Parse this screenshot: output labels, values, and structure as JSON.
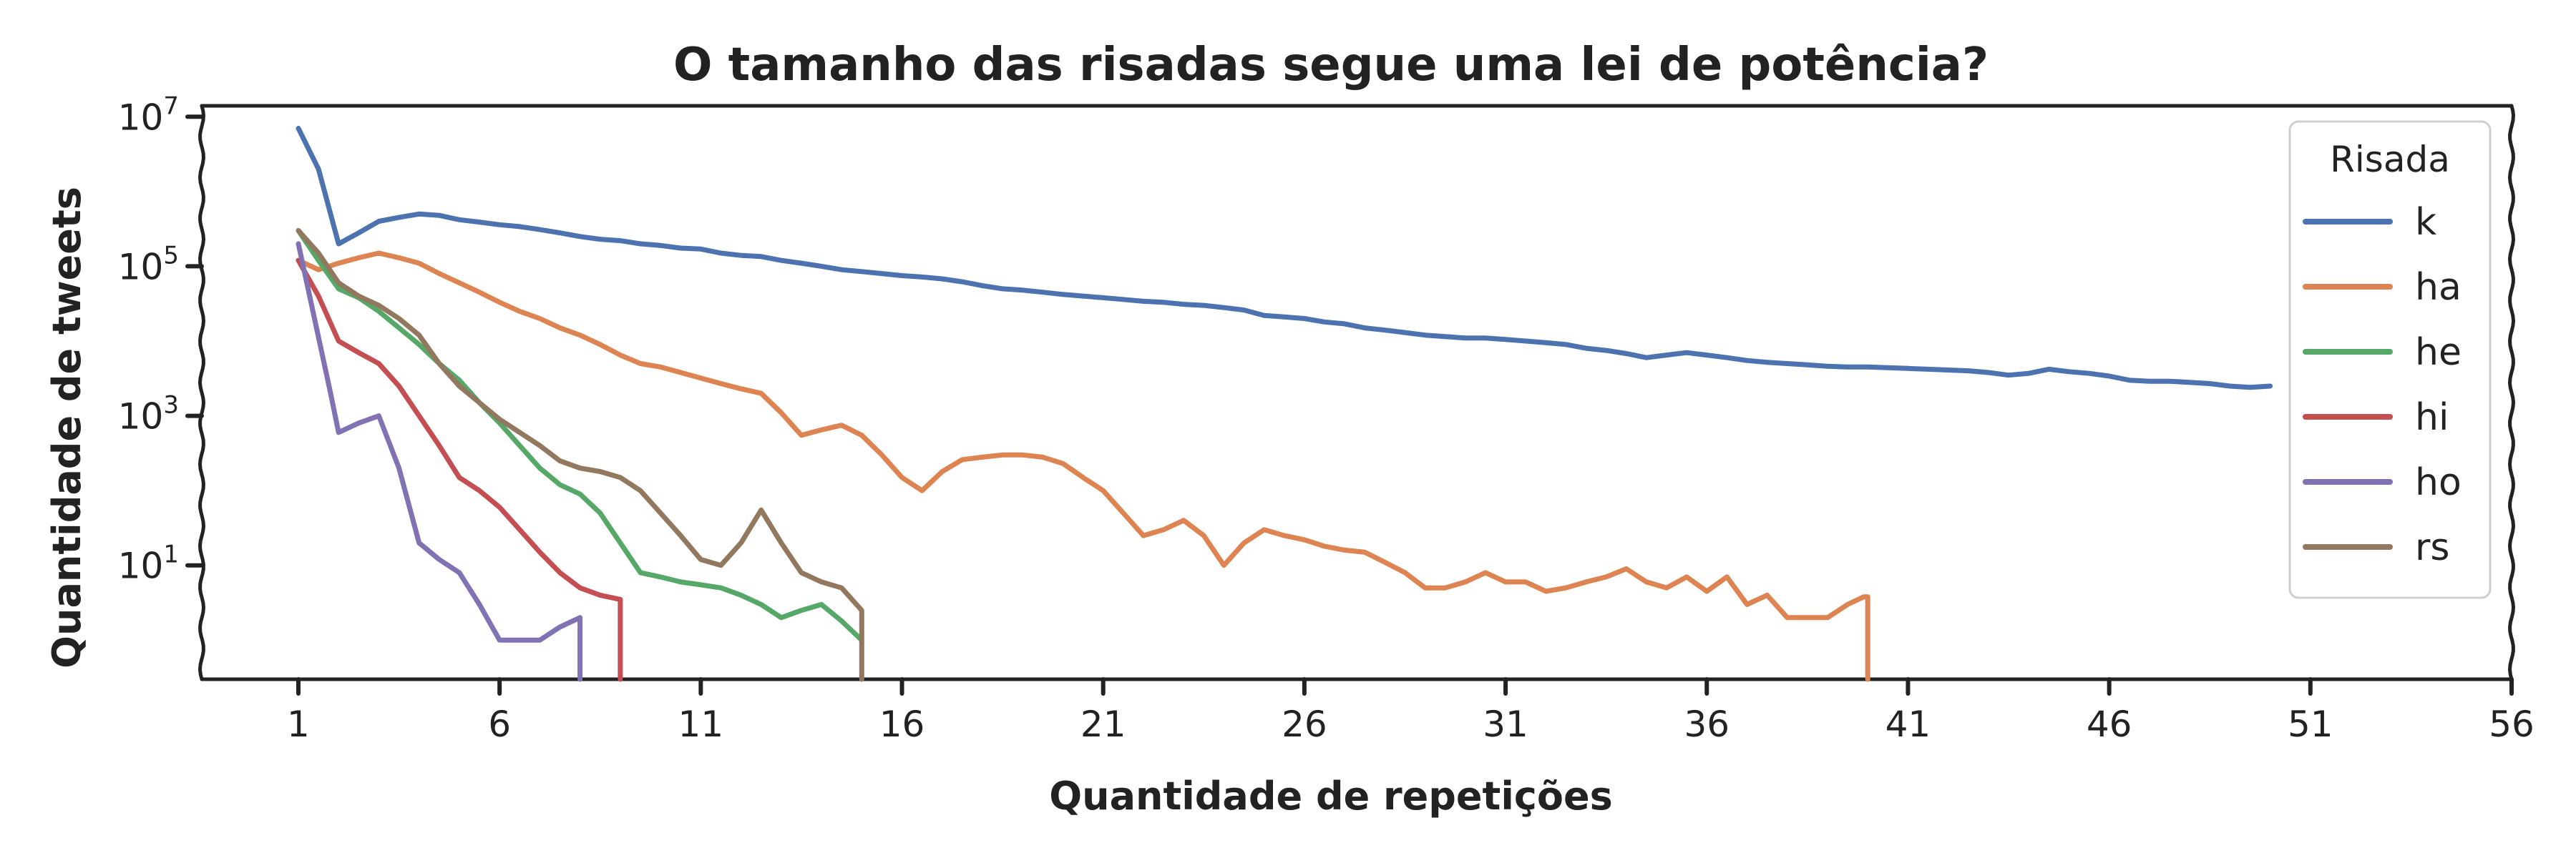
{
  "chart_data": {
    "type": "line",
    "title": "O tamanho das risadas segue uma lei de potência?",
    "xlabel": "Quantidade de repetições",
    "ylabel": "Quantidade de tweets",
    "xlim": [
      -1.4,
      56
    ],
    "ylim": [
      0.3,
      14000000
    ],
    "yscale": "log",
    "x_ticks": [
      1,
      6,
      11,
      16,
      21,
      26,
      31,
      36,
      41,
      46,
      51,
      56
    ],
    "y_ticks": [
      {
        "value": 10,
        "base": "10",
        "exp": "1"
      },
      {
        "value": 1000,
        "base": "10",
        "exp": "3"
      },
      {
        "value": 100000,
        "base": "10",
        "exp": "5"
      },
      {
        "value": 10000000,
        "base": "10",
        "exp": "7"
      }
    ],
    "grid": false,
    "legend": {
      "title": "Risada",
      "position": "top-right"
    },
    "series": [
      {
        "name": "k",
        "color": "#4c72b0",
        "x": [
          1,
          1.5,
          2,
          2.5,
          3,
          3.5,
          4,
          4.5,
          5,
          5.5,
          6,
          6.5,
          7,
          7.5,
          8,
          8.5,
          9,
          9.5,
          10,
          10.5,
          11,
          11.5,
          12,
          12.5,
          13,
          13.5,
          14,
          14.5,
          15,
          15.5,
          16,
          16.5,
          17,
          17.5,
          18,
          18.5,
          19,
          19.5,
          20,
          20.5,
          21,
          21.5,
          22,
          22.5,
          23,
          23.5,
          24,
          24.5,
          25,
          25.5,
          26,
          26.5,
          27,
          27.5,
          28,
          28.5,
          29,
          29.5,
          30,
          30.5,
          31,
          31.5,
          32,
          32.5,
          33,
          33.5,
          34,
          34.5,
          35,
          35.5,
          36,
          36.5,
          37,
          37.5,
          38,
          38.5,
          39,
          39.5,
          40,
          40.5,
          41,
          41.5,
          42,
          42.5,
          43,
          43.5,
          44,
          44.5,
          45,
          45.5,
          46,
          46.5,
          47,
          47.5,
          48,
          48.5,
          49,
          49.5,
          50
        ],
        "y": [
          7000000,
          2000000,
          200000,
          280000,
          400000,
          450000,
          500000,
          480000,
          420000,
          390000,
          360000,
          340000,
          310000,
          280000,
          250000,
          230000,
          220000,
          200000,
          190000,
          175000,
          170000,
          150000,
          140000,
          135000,
          120000,
          110000,
          100000,
          90000,
          85000,
          80000,
          75000,
          72000,
          68000,
          62000,
          55000,
          50000,
          48000,
          45000,
          42000,
          40000,
          38000,
          36000,
          34000,
          33000,
          31000,
          30000,
          28000,
          26000,
          22000,
          21000,
          20000,
          18000,
          17000,
          15000,
          14000,
          13000,
          12000,
          11500,
          11000,
          11000,
          10500,
          10000,
          9500,
          9000,
          8000,
          7500,
          6800,
          6000,
          6500,
          7000,
          6500,
          6000,
          5500,
          5200,
          5000,
          4800,
          4600,
          4500,
          4500,
          4400,
          4300,
          4200,
          4100,
          4000,
          3800,
          3500,
          3700,
          4200,
          3900,
          3700,
          3400,
          3000,
          2900,
          2900,
          2800,
          2700,
          2500,
          2400,
          2500
        ]
      },
      {
        "name": "ha",
        "color": "#dd8452",
        "x": [
          1,
          1.5,
          2,
          2.5,
          3,
          3.5,
          4,
          4.5,
          5,
          5.5,
          6,
          6.5,
          7,
          7.5,
          8,
          8.5,
          9,
          9.5,
          10,
          10.5,
          11,
          11.5,
          12,
          12.5,
          13,
          13.5,
          14,
          14.5,
          15,
          15.5,
          16,
          16.5,
          17,
          17.5,
          18,
          18.5,
          19,
          19.5,
          20,
          20.5,
          21,
          21.5,
          22,
          22.5,
          23,
          23.5,
          24,
          24.5,
          25,
          25.5,
          26,
          26.5,
          27,
          27.5,
          28,
          28.5,
          29,
          29.5,
          30,
          30.5,
          31,
          31.5,
          32,
          32.5,
          33,
          33.5,
          34,
          34.5,
          35,
          35.5,
          36,
          36.5,
          37,
          37.5,
          38,
          38.5,
          39,
          39.5,
          39.9,
          40,
          40
        ],
        "y": [
          120000,
          90000,
          110000,
          130000,
          150000,
          130000,
          110000,
          80000,
          60000,
          45000,
          33000,
          25000,
          20000,
          15000,
          12000,
          9000,
          6500,
          5000,
          4500,
          3800,
          3200,
          2700,
          2300,
          2000,
          1100,
          550,
          650,
          750,
          550,
          300,
          150,
          100,
          180,
          260,
          280,
          300,
          300,
          280,
          230,
          150,
          100,
          50,
          25,
          30,
          40,
          25,
          10,
          20,
          30,
          25,
          22,
          18,
          16,
          15,
          11,
          8,
          5,
          5,
          6,
          8,
          6,
          6,
          4.5,
          5,
          6,
          7,
          9,
          6,
          5,
          7,
          4.5,
          7,
          3,
          4,
          2,
          2,
          2,
          3,
          3.8,
          3.8,
          0.3
        ]
      },
      {
        "name": "he",
        "color": "#55a868",
        "x": [
          1,
          1.5,
          2,
          2.5,
          3,
          3.5,
          4,
          4.5,
          5,
          5.5,
          6,
          6.5,
          7,
          7.5,
          8,
          8.5,
          9,
          9.5,
          10,
          10.5,
          11,
          11.5,
          12,
          12.5,
          13,
          13.5,
          14,
          14.5,
          15
        ],
        "y": [
          300000,
          120000,
          50000,
          38000,
          25000,
          15000,
          9000,
          5000,
          3000,
          1500,
          800,
          400,
          200,
          120,
          90,
          50,
          20,
          8,
          7,
          6,
          5.5,
          5,
          4,
          3,
          2,
          2.5,
          3,
          1.8,
          1
        ]
      },
      {
        "name": "hi",
        "color": "#c44e52",
        "x": [
          1,
          1.5,
          2,
          2.5,
          3,
          3.5,
          4,
          4.5,
          5,
          5.5,
          6,
          6.5,
          7,
          7.5,
          8,
          8.5,
          9,
          9,
          9
        ],
        "y": [
          120000,
          40000,
          10000,
          7000,
          5000,
          2500,
          1000,
          400,
          150,
          100,
          60,
          30,
          15,
          8,
          5,
          4,
          3.5,
          3.5,
          0.3
        ]
      },
      {
        "name": "ho",
        "color": "#8172b3",
        "x": [
          1,
          1.4,
          1.8,
          2,
          2.5,
          3,
          3.5,
          4,
          4.5,
          5,
          5.5,
          6,
          6.5,
          7,
          7.5,
          8,
          8,
          8
        ],
        "y": [
          200000,
          20000,
          2000,
          600,
          800,
          1000,
          200,
          20,
          12,
          8,
          3,
          1,
          1,
          1,
          1.5,
          2,
          2,
          0.3
        ]
      },
      {
        "name": "rs",
        "color": "#937860",
        "x": [
          1,
          1.5,
          2,
          2.5,
          3,
          3.5,
          4,
          4.5,
          5,
          5.5,
          6,
          6.5,
          7,
          7.5,
          8,
          8.5,
          9,
          9.5,
          10,
          10.5,
          11,
          11.5,
          12,
          12.5,
          13,
          13.5,
          14,
          14.5,
          15,
          15,
          15
        ],
        "y": [
          300000,
          150000,
          60000,
          40000,
          30000,
          20000,
          12000,
          5000,
          2500,
          1500,
          900,
          600,
          400,
          250,
          200,
          180,
          150,
          100,
          50,
          25,
          12,
          10,
          20,
          55,
          20,
          8,
          6,
          5,
          2.5,
          2,
          0.3
        ]
      }
    ]
  }
}
